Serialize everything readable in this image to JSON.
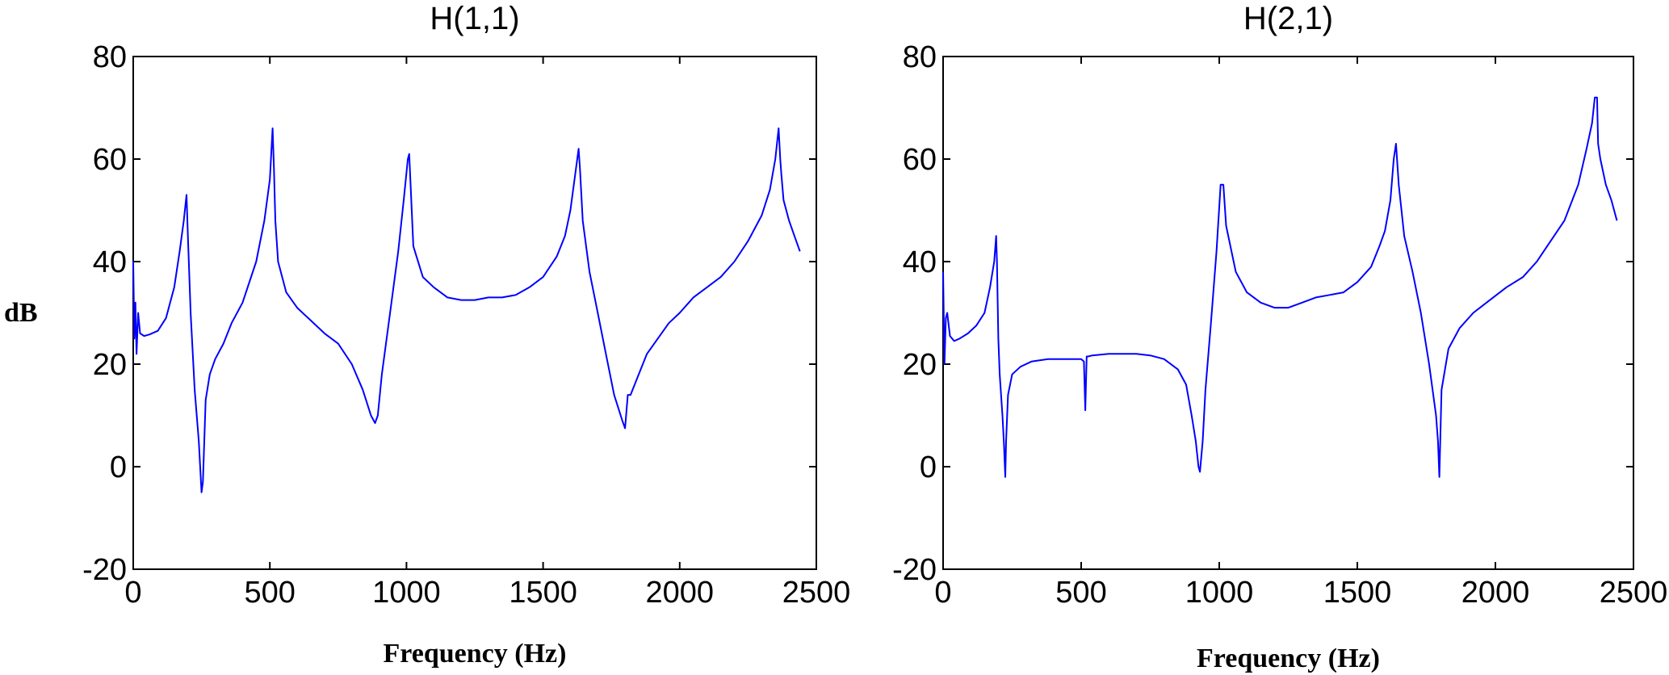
{
  "ylabel": "dB",
  "colors": {
    "line": "#0000FF",
    "axes": "#000000",
    "background": "#FFFFFF"
  },
  "chart_data": [
    {
      "type": "line",
      "title": "H(1,1)",
      "xlabel": "Frequency (Hz)",
      "ylabel": "dB",
      "xlim": [
        0,
        2500
      ],
      "ylim": [
        -20,
        80
      ],
      "xticks": [
        0,
        500,
        1000,
        1500,
        2000,
        2500
      ],
      "yticks": [
        -20,
        0,
        20,
        40,
        60,
        80
      ],
      "grid": false,
      "series": [
        {
          "color": "#0000FF",
          "x": [
            0,
            4,
            8,
            12,
            18,
            25,
            40,
            60,
            90,
            120,
            150,
            170,
            185,
            195,
            200,
            210,
            225,
            240,
            250,
            255,
            265,
            280,
            300,
            330,
            360,
            400,
            450,
            480,
            500,
            510,
            515,
            520,
            530,
            560,
            600,
            650,
            700,
            750,
            800,
            840,
            870,
            885,
            895,
            910,
            940,
            970,
            990,
            1005,
            1010,
            1015,
            1025,
            1060,
            1100,
            1150,
            1200,
            1250,
            1300,
            1350,
            1400,
            1450,
            1500,
            1550,
            1580,
            1600,
            1620,
            1630,
            1635,
            1645,
            1670,
            1700,
            1730,
            1760,
            1790,
            1800,
            1810,
            1820,
            1850,
            1880,
            1920,
            1960,
            2000,
            2050,
            2100,
            2150,
            2200,
            2250,
            2300,
            2330,
            2350,
            2362,
            2368,
            2372,
            2380,
            2400,
            2420,
            2440
          ],
          "y": [
            40,
            25,
            32,
            22,
            30,
            26,
            25.5,
            25.8,
            26.5,
            29,
            35,
            42,
            48,
            53,
            45,
            30,
            15,
            5,
            -5,
            -3,
            13,
            18,
            21,
            24,
            28,
            32,
            40,
            48,
            56,
            66,
            58,
            48,
            40,
            34,
            31,
            28.5,
            26,
            24,
            20,
            15,
            10,
            8.5,
            10,
            18,
            30,
            42,
            52,
            60,
            61,
            55,
            43,
            37,
            35,
            33,
            32.5,
            32.5,
            33,
            33,
            33.5,
            35,
            37,
            41,
            45,
            50,
            58,
            62,
            58,
            48,
            38,
            30,
            22,
            14,
            9,
            7.5,
            14,
            14,
            18,
            22,
            25,
            28,
            30,
            33,
            35,
            37,
            40,
            44,
            49,
            54,
            60,
            66,
            60,
            57,
            52,
            48,
            45,
            42
          ]
        }
      ]
    },
    {
      "type": "line",
      "title": "H(2,1)",
      "xlabel": "Frequency (Hz)",
      "ylabel": "",
      "xlim": [
        0,
        2500
      ],
      "ylim": [
        -20,
        80
      ],
      "xticks": [
        0,
        500,
        1000,
        1500,
        2000,
        2500
      ],
      "yticks": [
        -20,
        0,
        20,
        40,
        60,
        80
      ],
      "grid": false,
      "series": [
        {
          "color": "#0000FF",
          "x": [
            0,
            5,
            10,
            15,
            25,
            40,
            60,
            90,
            120,
            150,
            170,
            185,
            192,
            195,
            200,
            205,
            215,
            220,
            225,
            228,
            235,
            250,
            280,
            320,
            380,
            450,
            500,
            510,
            515,
            520,
            525,
            540,
            600,
            650,
            700,
            750,
            800,
            850,
            880,
            900,
            915,
            925,
            930,
            940,
            950,
            970,
            990,
            1005,
            1015,
            1025,
            1060,
            1100,
            1150,
            1200,
            1250,
            1300,
            1350,
            1400,
            1450,
            1500,
            1550,
            1580,
            1600,
            1620,
            1632,
            1640,
            1650,
            1670,
            1700,
            1730,
            1760,
            1785,
            1792,
            1797,
            1805,
            1830,
            1870,
            1920,
            1980,
            2040,
            2100,
            2150,
            2200,
            2250,
            2300,
            2330,
            2350,
            2360,
            2368,
            2372,
            2380,
            2400,
            2420,
            2440
          ],
          "y": [
            38,
            20,
            29,
            30,
            25.5,
            24.5,
            25,
            26,
            27.5,
            30,
            35,
            40,
            45,
            40,
            25,
            18,
            10,
            5,
            -2,
            5,
            14,
            18,
            19.5,
            20.5,
            21,
            21,
            21,
            20.5,
            11,
            21.5,
            21.5,
            21.7,
            22,
            22,
            22,
            21.7,
            21,
            19,
            16,
            10,
            5,
            0,
            -1,
            5,
            15,
            28,
            42,
            55,
            55,
            47,
            38,
            34,
            32,
            31,
            31,
            32,
            33,
            33.5,
            34,
            36,
            39,
            43,
            46,
            52,
            60,
            63,
            55,
            45,
            38,
            30,
            20,
            10,
            5,
            -2,
            15,
            23,
            27,
            30,
            32.5,
            35,
            37,
            40,
            44,
            48,
            55,
            62,
            67,
            72,
            72,
            63,
            60,
            55,
            52,
            48
          ]
        }
      ]
    }
  ]
}
